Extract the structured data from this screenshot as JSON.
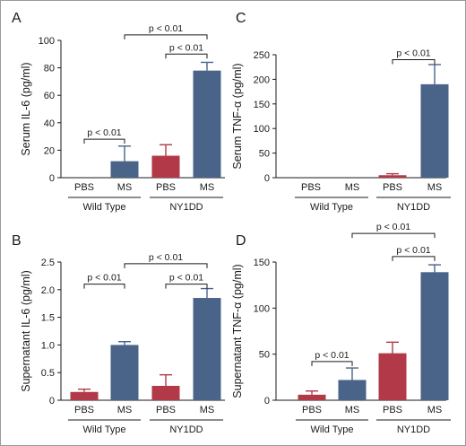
{
  "colors": {
    "PBS": "#b23a48",
    "MS": "#4a6389"
  },
  "chart_data": [
    {
      "id": "A",
      "type": "bar",
      "panel_label": "A",
      "ylabel": "Serum IL-6 (pg/ml)",
      "ylim": [
        0,
        100
      ],
      "yticks": [
        0,
        20,
        40,
        60,
        80,
        100
      ],
      "tick_labels": [
        "0",
        "20",
        "40",
        "60",
        "80",
        "100"
      ],
      "categories": [
        "PBS",
        "MS",
        "PBS",
        "MS"
      ],
      "groups": [
        "Wild Type",
        "NY1DD"
      ],
      "values": [
        0,
        12,
        16,
        78
      ],
      "errors": [
        0,
        11,
        8,
        6
      ],
      "significance": [
        {
          "from": 0,
          "to": 1,
          "y": 28,
          "label": "p < 0.01"
        },
        {
          "from": 2,
          "to": 3,
          "y": 90,
          "label": "p < 0.01"
        },
        {
          "from": 1,
          "to": 3,
          "y": 104,
          "label": "p < 0.01"
        }
      ]
    },
    {
      "id": "C",
      "type": "bar",
      "panel_label": "C",
      "ylabel": "Serum TNF-α (pg/ml)",
      "ylim": [
        0,
        250
      ],
      "yticks": [
        0,
        50,
        100,
        150,
        200,
        250
      ],
      "tick_labels": [
        "0",
        "50",
        "100",
        "150",
        "200",
        "250"
      ],
      "categories": [
        "PBS",
        "MS",
        "PBS",
        "MS"
      ],
      "groups": [
        "Wild Type",
        "NY1DD"
      ],
      "values": [
        0,
        0,
        5,
        190
      ],
      "errors": [
        0,
        0,
        3,
        40
      ],
      "significance": [
        {
          "from": 2,
          "to": 3,
          "y": 240,
          "label": "p < 0.01"
        }
      ]
    },
    {
      "id": "B",
      "type": "bar",
      "panel_label": "B",
      "ylabel": "Supernatant IL-6 (pg/ml)",
      "ylim": [
        0,
        2.5
      ],
      "yticks": [
        0,
        0.5,
        1,
        1.5,
        2,
        2.5
      ],
      "tick_labels": [
        "0",
        "0.5",
        "1.0",
        "1.5",
        "2.0",
        "2.5"
      ],
      "categories": [
        "PBS",
        "MS",
        "PBS",
        "MS"
      ],
      "groups": [
        "Wild Type",
        "NY1DD"
      ],
      "values": [
        0.15,
        1.0,
        0.26,
        1.85
      ],
      "errors": [
        0.05,
        0.06,
        0.2,
        0.17
      ],
      "significance": [
        {
          "from": 0,
          "to": 1,
          "y": 2.1,
          "label": "p < 0.01"
        },
        {
          "from": 2,
          "to": 3,
          "y": 2.1,
          "label": "p < 0.01"
        },
        {
          "from": 1,
          "to": 3,
          "y": 2.47,
          "label": "p < 0.01"
        }
      ]
    },
    {
      "id": "D",
      "type": "bar",
      "panel_label": "D",
      "ylabel": "Supernatant TNF-α (pg/ml)",
      "ylim": [
        0,
        150
      ],
      "yticks": [
        0,
        50,
        100,
        150
      ],
      "tick_labels": [
        "0",
        "50",
        "100",
        "150"
      ],
      "categories": [
        "PBS",
        "MS",
        "PBS",
        "MS"
      ],
      "groups": [
        "Wild Type",
        "NY1DD"
      ],
      "values": [
        6,
        22,
        51,
        139
      ],
      "errors": [
        4,
        13,
        12,
        8
      ],
      "significance": [
        {
          "from": 0,
          "to": 1,
          "y": 42,
          "label": "p < 0.01"
        },
        {
          "from": 2,
          "to": 3,
          "y": 156,
          "label": "p < 0.01"
        },
        {
          "from": 1,
          "to": 3,
          "y": 181,
          "label": "p < 0.01"
        }
      ]
    }
  ]
}
